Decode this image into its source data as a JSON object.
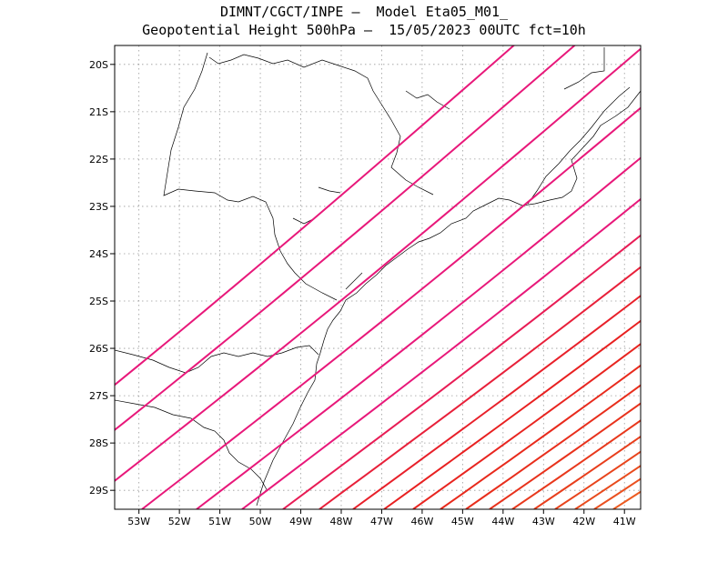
{
  "title": {
    "line1": "DIMNT/CGCT/INPE –  Model Eta05_M01_",
    "line2": "Geopotential Height 500hPa –  15/05/2023 00UTC fct=10h"
  },
  "chart_data": {
    "type": "contour-map",
    "variable": "Geopotential Height",
    "level": "500hPa",
    "model": "Eta05_M01_",
    "run": "15/05/2023 00UTC",
    "forecast": "fct=10h",
    "x_range": [
      -53.6,
      -40.6
    ],
    "y_range": [
      -29.4,
      -19.6
    ],
    "x_ticks": [
      {
        "value": -53,
        "label": "53W"
      },
      {
        "value": -52,
        "label": "52W"
      },
      {
        "value": -51,
        "label": "51W"
      },
      {
        "value": -50,
        "label": "50W"
      },
      {
        "value": -49,
        "label": "49W"
      },
      {
        "value": -48,
        "label": "48W"
      },
      {
        "value": -47,
        "label": "47W"
      },
      {
        "value": -46,
        "label": "46W"
      },
      {
        "value": -45,
        "label": "45W"
      },
      {
        "value": -44,
        "label": "44W"
      },
      {
        "value": -43,
        "label": "43W"
      },
      {
        "value": -42,
        "label": "42W"
      },
      {
        "value": -41,
        "label": "41W"
      }
    ],
    "y_ticks": [
      {
        "value": -20,
        "label": "20S"
      },
      {
        "value": -21,
        "label": "21S"
      },
      {
        "value": -22,
        "label": "22S"
      },
      {
        "value": -23,
        "label": "23S"
      },
      {
        "value": -24,
        "label": "24S"
      },
      {
        "value": -25,
        "label": "25S"
      },
      {
        "value": -26,
        "label": "26S"
      },
      {
        "value": -27,
        "label": "27S"
      },
      {
        "value": -28,
        "label": "28S"
      },
      {
        "value": -29,
        "label": "29S"
      }
    ],
    "grid": true,
    "contour_colors": [
      "#e8187a",
      "#e8187a",
      "#e8187a",
      "#e8187a",
      "#e8187a",
      "#e8187a",
      "#e81c55",
      "#e8203a",
      "#e8202a",
      "#e82020",
      "#e82520",
      "#e82a1c",
      "#e82e1c",
      "#e8321c",
      "#e8381c",
      "#e83e1c",
      "#e8441c",
      "#e84a1c",
      "#ea5020",
      "#ec5a20"
    ]
  }
}
